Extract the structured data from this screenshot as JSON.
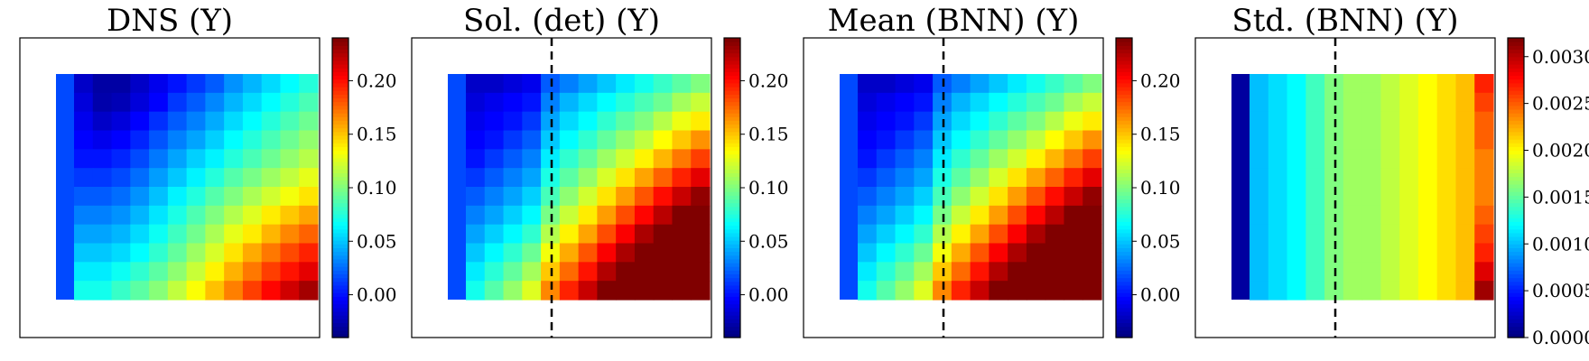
{
  "chart_data": [
    {
      "type": "heatmap",
      "title": "DNS (Y)",
      "colormap": "jet",
      "vmin": -0.04,
      "vmax": 0.24,
      "colorbar_ticks": [
        "0.00",
        "0.05",
        "0.10",
        "0.15",
        "0.20"
      ],
      "colorbar_tick_values": [
        0.0,
        0.05,
        0.1,
        0.15,
        0.2
      ],
      "left_strip": 0.015,
      "grid": [
        [
          -0.02,
          -0.03,
          -0.03,
          -0.02,
          -0.01,
          0.0,
          0.01,
          0.02,
          0.035,
          0.045,
          0.055,
          0.065,
          0.075
        ],
        [
          -0.015,
          -0.028,
          -0.025,
          -0.015,
          -0.005,
          0.01,
          0.02,
          0.032,
          0.045,
          0.055,
          0.065,
          0.075,
          0.085
        ],
        [
          -0.01,
          -0.02,
          -0.015,
          -0.005,
          0.008,
          0.02,
          0.03,
          0.042,
          0.055,
          0.065,
          0.075,
          0.085,
          0.095
        ],
        [
          -0.005,
          -0.01,
          -0.005,
          0.005,
          0.018,
          0.03,
          0.04,
          0.052,
          0.065,
          0.075,
          0.085,
          0.095,
          0.105
        ],
        [
          0.0,
          0.0,
          0.005,
          0.015,
          0.028,
          0.04,
          0.052,
          0.062,
          0.075,
          0.085,
          0.095,
          0.105,
          0.115
        ],
        [
          0.01,
          0.01,
          0.015,
          0.025,
          0.038,
          0.05,
          0.062,
          0.075,
          0.088,
          0.098,
          0.108,
          0.118,
          0.128
        ],
        [
          0.02,
          0.02,
          0.025,
          0.035,
          0.048,
          0.062,
          0.074,
          0.088,
          0.1,
          0.112,
          0.122,
          0.132,
          0.142
        ],
        [
          0.03,
          0.03,
          0.035,
          0.045,
          0.058,
          0.072,
          0.086,
          0.1,
          0.114,
          0.126,
          0.14,
          0.15,
          0.16
        ],
        [
          0.04,
          0.04,
          0.045,
          0.055,
          0.068,
          0.082,
          0.096,
          0.112,
          0.128,
          0.14,
          0.155,
          0.168,
          0.178
        ],
        [
          0.05,
          0.05,
          0.055,
          0.065,
          0.078,
          0.092,
          0.108,
          0.124,
          0.142,
          0.158,
          0.172,
          0.185,
          0.196
        ],
        [
          0.06,
          0.06,
          0.068,
          0.078,
          0.09,
          0.104,
          0.12,
          0.138,
          0.156,
          0.172,
          0.188,
          0.2,
          0.212
        ],
        [
          0.07,
          0.07,
          0.08,
          0.09,
          0.102,
          0.118,
          0.134,
          0.152,
          0.17,
          0.188,
          0.204,
          0.218,
          0.23
        ]
      ],
      "divider": false
    },
    {
      "type": "heatmap",
      "title": "Sol. (det) (Y)",
      "colormap": "jet",
      "vmin": -0.04,
      "vmax": 0.24,
      "colorbar_ticks": [
        "0.00",
        "0.05",
        "0.10",
        "0.15",
        "0.20"
      ],
      "colorbar_tick_values": [
        0.0,
        0.05,
        0.1,
        0.15,
        0.2
      ],
      "left_strip": 0.015,
      "grid": [
        [
          -0.02,
          -0.02,
          -0.015,
          -0.01,
          0.02,
          0.03,
          0.04,
          0.05,
          0.06,
          0.07,
          0.08,
          0.09,
          0.1
        ],
        [
          -0.015,
          -0.01,
          -0.005,
          0.0,
          0.03,
          0.045,
          0.055,
          0.065,
          0.075,
          0.085,
          0.095,
          0.11,
          0.12
        ],
        [
          -0.01,
          -0.005,
          0.0,
          0.01,
          0.04,
          0.055,
          0.065,
          0.078,
          0.09,
          0.1,
          0.115,
          0.13,
          0.14
        ],
        [
          -0.005,
          0.0,
          0.01,
          0.02,
          0.05,
          0.065,
          0.078,
          0.092,
          0.105,
          0.118,
          0.135,
          0.15,
          0.165
        ],
        [
          0.0,
          0.01,
          0.02,
          0.03,
          0.06,
          0.078,
          0.092,
          0.108,
          0.122,
          0.138,
          0.155,
          0.172,
          0.188
        ],
        [
          0.01,
          0.02,
          0.03,
          0.04,
          0.072,
          0.09,
          0.106,
          0.124,
          0.142,
          0.16,
          0.178,
          0.196,
          0.212
        ],
        [
          0.02,
          0.03,
          0.04,
          0.052,
          0.084,
          0.104,
          0.122,
          0.142,
          0.162,
          0.182,
          0.202,
          0.22,
          0.235
        ],
        [
          0.03,
          0.04,
          0.052,
          0.064,
          0.098,
          0.12,
          0.14,
          0.162,
          0.184,
          0.204,
          0.224,
          0.24,
          0.24
        ],
        [
          0.04,
          0.052,
          0.064,
          0.078,
          0.114,
          0.138,
          0.16,
          0.184,
          0.206,
          0.228,
          0.24,
          0.24,
          0.24
        ],
        [
          0.05,
          0.064,
          0.078,
          0.094,
          0.132,
          0.158,
          0.182,
          0.206,
          0.228,
          0.24,
          0.24,
          0.24,
          0.24
        ],
        [
          0.06,
          0.076,
          0.092,
          0.11,
          0.15,
          0.176,
          0.2,
          0.226,
          0.24,
          0.24,
          0.24,
          0.24,
          0.24
        ],
        [
          0.07,
          0.088,
          0.106,
          0.126,
          0.168,
          0.196,
          0.22,
          0.24,
          0.24,
          0.24,
          0.24,
          0.24,
          0.24
        ]
      ],
      "divider": true
    },
    {
      "type": "heatmap",
      "title": "Mean (BNN) (Y)",
      "colormap": "jet",
      "vmin": -0.04,
      "vmax": 0.24,
      "colorbar_ticks": [
        "0.00",
        "0.05",
        "0.10",
        "0.15",
        "0.20"
      ],
      "colorbar_tick_values": [
        0.0,
        0.05,
        0.1,
        0.15,
        0.2
      ],
      "left_strip": 0.015,
      "grid": [
        [
          -0.02,
          -0.02,
          -0.015,
          -0.01,
          0.02,
          0.03,
          0.04,
          0.05,
          0.06,
          0.07,
          0.08,
          0.09,
          0.1
        ],
        [
          -0.015,
          -0.01,
          -0.005,
          0.0,
          0.03,
          0.045,
          0.055,
          0.065,
          0.075,
          0.085,
          0.095,
          0.11,
          0.12
        ],
        [
          -0.01,
          -0.005,
          0.0,
          0.01,
          0.04,
          0.055,
          0.065,
          0.078,
          0.09,
          0.1,
          0.115,
          0.13,
          0.14
        ],
        [
          -0.005,
          0.0,
          0.01,
          0.02,
          0.05,
          0.065,
          0.078,
          0.092,
          0.105,
          0.118,
          0.135,
          0.15,
          0.165
        ],
        [
          0.0,
          0.01,
          0.02,
          0.03,
          0.06,
          0.078,
          0.092,
          0.108,
          0.122,
          0.138,
          0.155,
          0.172,
          0.188
        ],
        [
          0.01,
          0.02,
          0.03,
          0.04,
          0.072,
          0.09,
          0.106,
          0.124,
          0.142,
          0.16,
          0.178,
          0.196,
          0.212
        ],
        [
          0.02,
          0.03,
          0.04,
          0.052,
          0.084,
          0.104,
          0.122,
          0.142,
          0.162,
          0.182,
          0.202,
          0.22,
          0.235
        ],
        [
          0.03,
          0.04,
          0.052,
          0.064,
          0.098,
          0.12,
          0.14,
          0.162,
          0.184,
          0.204,
          0.224,
          0.24,
          0.24
        ],
        [
          0.04,
          0.052,
          0.064,
          0.078,
          0.114,
          0.138,
          0.16,
          0.184,
          0.206,
          0.228,
          0.24,
          0.24,
          0.24
        ],
        [
          0.05,
          0.064,
          0.078,
          0.094,
          0.132,
          0.158,
          0.182,
          0.206,
          0.228,
          0.24,
          0.24,
          0.24,
          0.24
        ],
        [
          0.06,
          0.076,
          0.092,
          0.11,
          0.15,
          0.176,
          0.2,
          0.226,
          0.24,
          0.24,
          0.24,
          0.24,
          0.24
        ],
        [
          0.07,
          0.088,
          0.106,
          0.126,
          0.168,
          0.196,
          0.22,
          0.24,
          0.24,
          0.24,
          0.24,
          0.24,
          0.24
        ]
      ],
      "divider": true
    },
    {
      "type": "heatmap",
      "title": "Std. (BNN) (Y)",
      "colormap": "jet",
      "vmin": 0.0,
      "vmax": 0.0032,
      "colorbar_ticks": [
        "0.0000",
        "0.0005",
        "0.0010",
        "0.0015",
        "0.0020",
        "0.0025",
        "0.0030"
      ],
      "colorbar_tick_values": [
        0.0,
        0.0005,
        0.001,
        0.0015,
        0.002,
        0.0025,
        0.003
      ],
      "left_strip": 0.0001,
      "grid": [
        [
          0.001,
          0.0011,
          0.0012,
          0.0014,
          0.0016,
          0.0017,
          0.0017,
          0.0018,
          0.0019,
          0.002,
          0.0021,
          0.0022,
          0.0027
        ],
        [
          0.001,
          0.0011,
          0.0012,
          0.0014,
          0.0016,
          0.0017,
          0.0017,
          0.0018,
          0.0019,
          0.002,
          0.0021,
          0.0022,
          0.0026
        ],
        [
          0.001,
          0.0011,
          0.0012,
          0.0014,
          0.0016,
          0.0017,
          0.0017,
          0.0018,
          0.0019,
          0.002,
          0.0021,
          0.0022,
          0.0025
        ],
        [
          0.001,
          0.0011,
          0.0012,
          0.0014,
          0.0016,
          0.0017,
          0.0017,
          0.0018,
          0.0019,
          0.002,
          0.0021,
          0.0022,
          0.0025
        ],
        [
          0.001,
          0.0011,
          0.0012,
          0.0014,
          0.0016,
          0.0017,
          0.0017,
          0.0018,
          0.0019,
          0.002,
          0.0021,
          0.0022,
          0.0024
        ],
        [
          0.001,
          0.0011,
          0.0012,
          0.0014,
          0.0016,
          0.0017,
          0.0017,
          0.0018,
          0.0019,
          0.002,
          0.0021,
          0.0022,
          0.0024
        ],
        [
          0.001,
          0.0011,
          0.0012,
          0.0014,
          0.0016,
          0.0017,
          0.0017,
          0.0018,
          0.0019,
          0.002,
          0.0021,
          0.0022,
          0.0024
        ],
        [
          0.001,
          0.0011,
          0.0012,
          0.0014,
          0.0016,
          0.0017,
          0.0017,
          0.0018,
          0.0019,
          0.002,
          0.0021,
          0.0022,
          0.0025
        ],
        [
          0.001,
          0.0011,
          0.0012,
          0.0014,
          0.0016,
          0.0017,
          0.0017,
          0.0018,
          0.0019,
          0.002,
          0.0021,
          0.0022,
          0.0026
        ],
        [
          0.001,
          0.0011,
          0.0012,
          0.0014,
          0.0016,
          0.0017,
          0.0017,
          0.0018,
          0.0019,
          0.002,
          0.0021,
          0.0022,
          0.0027
        ],
        [
          0.001,
          0.0011,
          0.0012,
          0.0014,
          0.0016,
          0.0017,
          0.0017,
          0.0018,
          0.0019,
          0.002,
          0.0021,
          0.0022,
          0.0029
        ],
        [
          0.001,
          0.0011,
          0.0012,
          0.0014,
          0.0016,
          0.0017,
          0.0017,
          0.0018,
          0.0019,
          0.002,
          0.0021,
          0.0022,
          0.0031
        ]
      ],
      "divider": true
    }
  ]
}
